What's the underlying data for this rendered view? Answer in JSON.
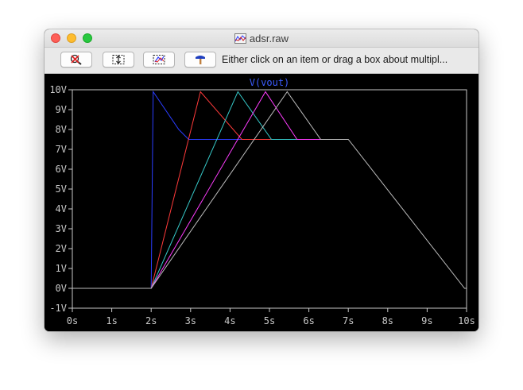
{
  "window": {
    "title": "adsr.raw",
    "title_icon": "waveform-file-icon"
  },
  "toolbar": {
    "buttons": [
      {
        "name": "zoom-to-fit-button",
        "icon": "magnifier-cross-icon"
      },
      {
        "name": "autorange-y-button",
        "icon": "vertical-arrows-icon"
      },
      {
        "name": "zoom-box-button",
        "icon": "zoom-area-icon"
      },
      {
        "name": "probe-button",
        "icon": "hammer-probe-icon"
      }
    ],
    "status_text": "Either click on an item or drag a box about multipl..."
  },
  "colors": {
    "plot_bg": "#000000",
    "axis": "#c8c8c8",
    "trace_label": "#3b5cff"
  },
  "chart_data": {
    "type": "line",
    "title": "V(vout)",
    "xlim": [
      0,
      10
    ],
    "ylim": [
      -1,
      10
    ],
    "x_ticks": [
      "0s",
      "1s",
      "2s",
      "3s",
      "4s",
      "5s",
      "6s",
      "7s",
      "8s",
      "9s",
      "10s"
    ],
    "y_ticks": [
      "-1V",
      "0V",
      "1V",
      "2V",
      "3V",
      "4V",
      "5V",
      "6V",
      "7V",
      "8V",
      "9V",
      "10V"
    ],
    "grid": false,
    "series": [
      {
        "color": "#2a3dff",
        "x": [
          0,
          2,
          2.05,
          2.7,
          2.95,
          7
        ],
        "y": [
          0,
          0,
          9.9,
          8.0,
          7.5,
          7.5
        ]
      },
      {
        "color": "#ff3a3a",
        "x": [
          2,
          3.25,
          4.3,
          7
        ],
        "y": [
          0,
          9.9,
          7.5,
          7.5
        ]
      },
      {
        "color": "#36c8c8",
        "x": [
          2,
          4.2,
          5.05,
          7
        ],
        "y": [
          0,
          9.9,
          7.5,
          7.5
        ]
      },
      {
        "color": "#ff3cff",
        "x": [
          2,
          4.9,
          5.7,
          7
        ],
        "y": [
          0,
          9.9,
          7.5,
          7.5
        ]
      },
      {
        "color": "#bdbdbd",
        "x": [
          0,
          2,
          5.45,
          6.3,
          7,
          9.95,
          10
        ],
        "y": [
          0,
          0,
          9.9,
          7.5,
          7.5,
          0,
          0
        ]
      }
    ]
  }
}
